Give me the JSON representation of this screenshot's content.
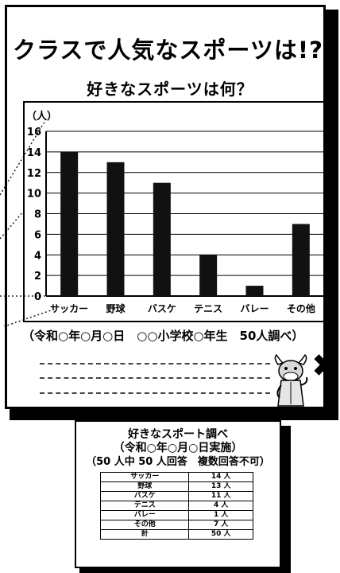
{
  "header": {
    "title": "クラスで人気なスポーツは!?",
    "subtitle": "好きなスポーツは何？"
  },
  "chart_data": {
    "type": "bar",
    "title": "好きなスポーツは何？",
    "y_unit_label": "（人）",
    "categories": [
      "サッカー",
      "野球",
      "バスケ",
      "テニス",
      "バレー",
      "その他"
    ],
    "values": [
      14,
      13,
      11,
      4,
      1,
      7
    ],
    "yticks": [
      0,
      2,
      4,
      6,
      8,
      10,
      12,
      14,
      16
    ],
    "ylim": [
      0,
      16
    ],
    "grid": true,
    "colors": {
      "bar": "#111111",
      "axis": "#000000",
      "grid": "#000000"
    }
  },
  "source_note": "（令和○年○月○日　○○小学校○年生　50人調べ）",
  "table": {
    "title_line1": "好きなスポート調べ",
    "title_line2": "（令和○年○月○日実施）",
    "title_line3": "（50 人中 50 人回答　複数回答不可）",
    "rows": [
      {
        "label": "サッカー",
        "value": "14 人"
      },
      {
        "label": "野球",
        "value": "13 人"
      },
      {
        "label": "バスケ",
        "value": "11 人"
      },
      {
        "label": "テニス",
        "value": "4 人"
      },
      {
        "label": "バレー",
        "value": "1 人"
      },
      {
        "label": "その他",
        "value": "7 人"
      },
      {
        "label": "計",
        "value": "50 人"
      }
    ]
  },
  "decor": {
    "mascot_icon": "cow-mascot-icon",
    "cross_icon": "cross-mark-icon"
  }
}
